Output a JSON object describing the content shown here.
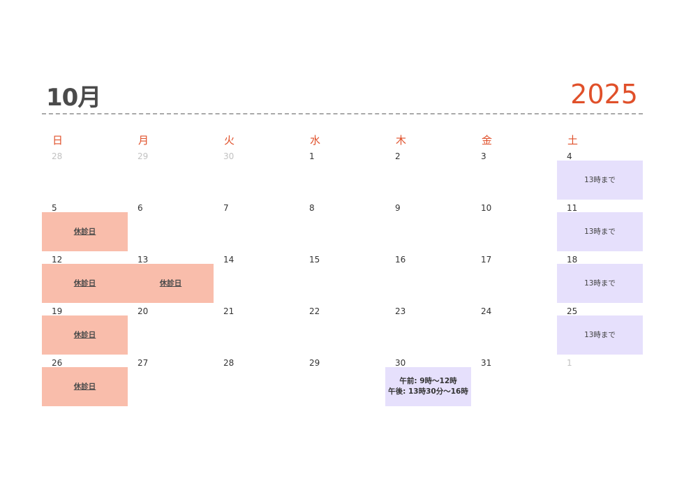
{
  "header": {
    "month": "10月",
    "year": "2025"
  },
  "weekdays": [
    "日",
    "月",
    "火",
    "水",
    "木",
    "金",
    "土"
  ],
  "events": {
    "closed": "休診日",
    "until13": "13時まで",
    "special_line1": "午前: 9時～12時",
    "special_line2": "午後: 13時30分～16時"
  },
  "weeks": [
    [
      "28",
      "29",
      "30",
      "1",
      "2",
      "3",
      "4"
    ],
    [
      "5",
      "6",
      "7",
      "8",
      "9",
      "10",
      "11"
    ],
    [
      "12",
      "13",
      "14",
      "15",
      "16",
      "17",
      "18"
    ],
    [
      "19",
      "20",
      "21",
      "22",
      "23",
      "24",
      "25"
    ],
    [
      "26",
      "27",
      "28",
      "29",
      "30",
      "31",
      "1"
    ]
  ],
  "colors": {
    "accent": "#e0502a",
    "closed_bg": "#f9bdab",
    "short_bg": "#e6e0fc"
  }
}
